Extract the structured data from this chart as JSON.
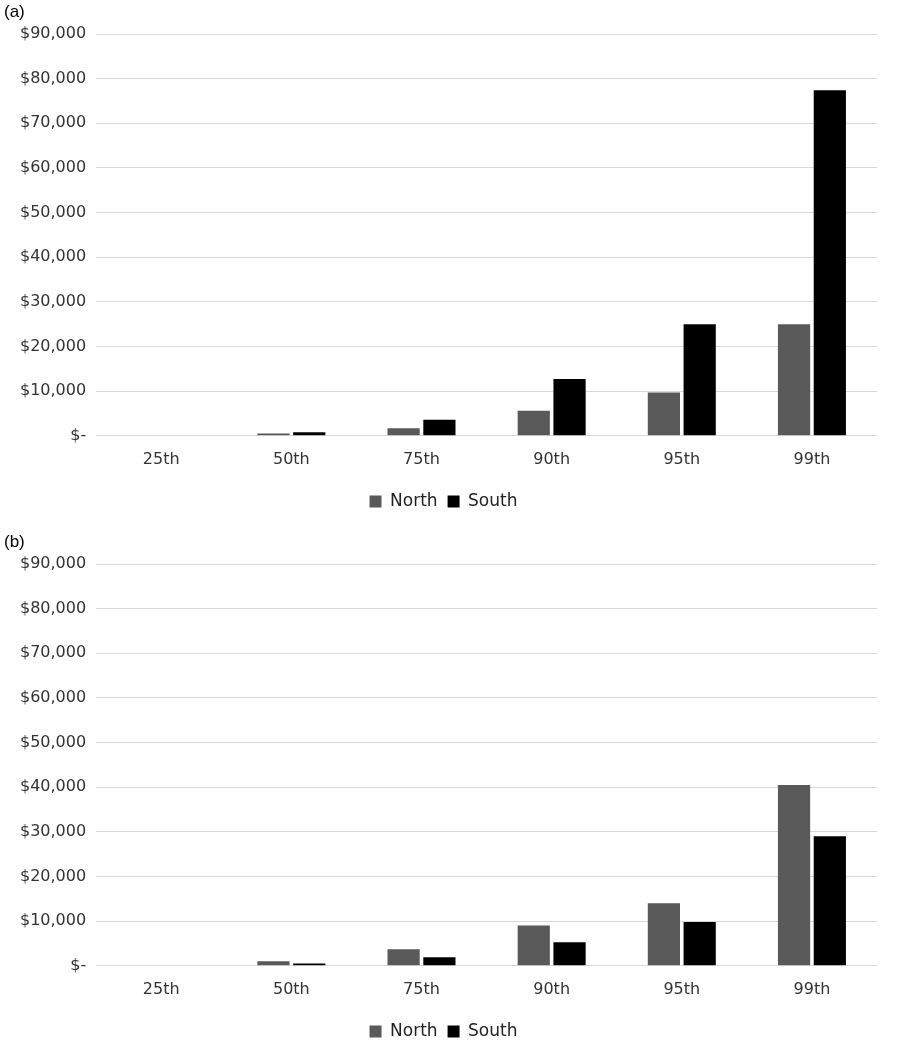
{
  "chart_data": [
    {
      "type": "bar",
      "title": "(a)",
      "categories": [
        "25th",
        "50th",
        "75th",
        "90th",
        "95th",
        "99th"
      ],
      "series": [
        {
          "name": "North",
          "color": "#595959",
          "values": [
            null,
            500,
            1700,
            5600,
            9700,
            25000
          ]
        },
        {
          "name": "South",
          "color": "#000000",
          "values": [
            null,
            800,
            3600,
            12700,
            25000,
            77400
          ]
        }
      ],
      "ylim": [
        0,
        90000
      ],
      "yticks": [
        {
          "value": 0,
          "label": "$-"
        },
        {
          "value": 10000,
          "label": "$10,000"
        },
        {
          "value": 20000,
          "label": "$20,000"
        },
        {
          "value": 30000,
          "label": "$30,000"
        },
        {
          "value": 40000,
          "label": "$40,000"
        },
        {
          "value": 50000,
          "label": "$50,000"
        },
        {
          "value": 60000,
          "label": "$60,000"
        },
        {
          "value": 70000,
          "label": "$70,000"
        },
        {
          "value": 80000,
          "label": "$80,000"
        },
        {
          "value": 90000,
          "label": "$90,000"
        }
      ],
      "grid": "y",
      "legend": "bottom"
    },
    {
      "type": "bar",
      "title": "(b)",
      "categories": [
        "25th",
        "50th",
        "75th",
        "90th",
        "95th",
        "99th"
      ],
      "series": [
        {
          "name": "North",
          "color": "#595959",
          "values": [
            null,
            1000,
            3700,
            9000,
            14000,
            40500
          ]
        },
        {
          "name": "South",
          "color": "#000000",
          "values": [
            null,
            500,
            1900,
            5300,
            9800,
            29000
          ]
        }
      ],
      "ylim": [
        0,
        90000
      ],
      "yticks": [
        {
          "value": 0,
          "label": "$-"
        },
        {
          "value": 10000,
          "label": "$10,000"
        },
        {
          "value": 20000,
          "label": "$20,000"
        },
        {
          "value": 30000,
          "label": "$30,000"
        },
        {
          "value": 40000,
          "label": "$40,000"
        },
        {
          "value": 50000,
          "label": "$50,000"
        },
        {
          "value": 60000,
          "label": "$60,000"
        },
        {
          "value": 70000,
          "label": "$70,000"
        },
        {
          "value": 80000,
          "label": "$80,000"
        },
        {
          "value": 90000,
          "label": "$90,000"
        }
      ],
      "grid": "y",
      "legend": "bottom"
    }
  ]
}
